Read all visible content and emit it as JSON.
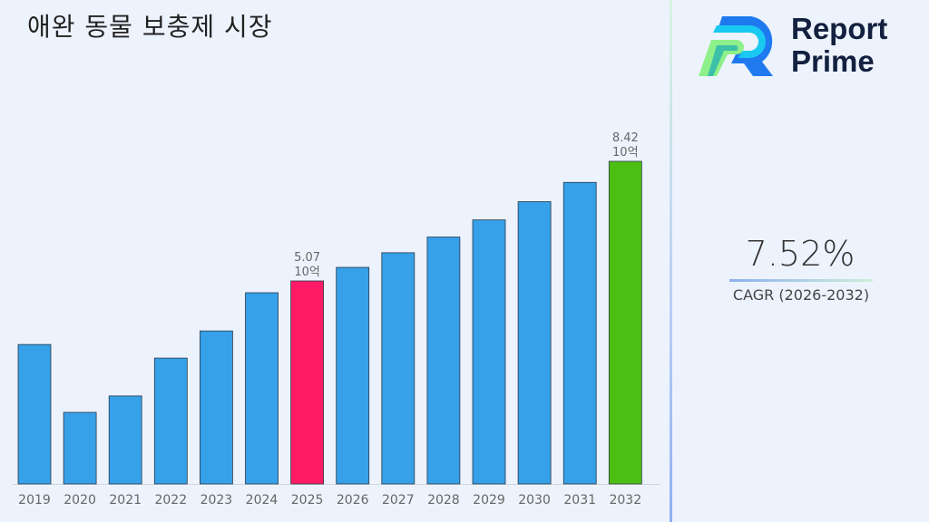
{
  "title": "애완 동물 보충제 시장",
  "logo": {
    "line1": "Report",
    "line2": "Prime"
  },
  "cagr": {
    "value": "7.52%",
    "label": "CAGR (2026-2032)"
  },
  "chart_data": {
    "type": "bar",
    "title": "애완 동물 보충제 시장",
    "categories": [
      "2019",
      "2020",
      "2021",
      "2022",
      "2023",
      "2024",
      "2025",
      "2026",
      "2027",
      "2028",
      "2029",
      "2030",
      "2031",
      "2032"
    ],
    "values": [
      3.29,
      1.39,
      1.85,
      2.91,
      3.67,
      4.74,
      5.07,
      5.45,
      5.86,
      6.3,
      6.78,
      7.29,
      7.83,
      8.42
    ],
    "unit": "10억",
    "data_labels": [
      {
        "category": "2025",
        "value": "5.07",
        "unit": "10억"
      },
      {
        "category": "2032",
        "value": "8.42",
        "unit": "10억"
      }
    ],
    "colors": {
      "default": "#36a0e8",
      "highlight_2025": "#ff1a66",
      "highlight_2032": "#4cbf12"
    },
    "grid": false,
    "legend": "none"
  }
}
